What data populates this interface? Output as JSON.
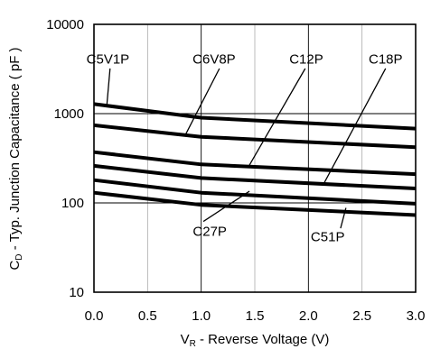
{
  "chart_data": {
    "type": "line",
    "xlabel": "VR - Reverse Voltage (V)",
    "xlabel_main": "V",
    "xlabel_sub": "R",
    "xlabel_rest": " - Reverse Voltage (V)",
    "ylabel": "CD - Typ. Junction Capacitance (pF)",
    "ylabel_main": "C",
    "ylabel_sub": "D",
    "ylabel_rest": " - Typ. Junction Capacitance ( pF )",
    "xlim": [
      0,
      3
    ],
    "ylim": [
      10,
      10000
    ],
    "yscale": "log",
    "grid": true,
    "x_ticks": [
      "0.0",
      "0.5",
      "1.0",
      "1.5",
      "2.0",
      "2.5",
      "3.0"
    ],
    "y_ticks": [
      "10",
      "100",
      "1000",
      "10000"
    ],
    "series": [
      {
        "name": "C5V1P",
        "x": [
          0,
          1,
          3
        ],
        "values": [
          1280,
          900,
          680
        ],
        "label_x": 0.13,
        "label_y": 4100
      },
      {
        "name": "C6V8P",
        "x": [
          0,
          1,
          3
        ],
        "values": [
          740,
          550,
          420
        ],
        "label_x": 1.12,
        "label_y": 4100
      },
      {
        "name": "C12P",
        "x": [
          0,
          1,
          3
        ],
        "values": [
          370,
          270,
          210
        ],
        "label_x": 1.98,
        "label_y": 4100
      },
      {
        "name": "C18P",
        "x": [
          0,
          1,
          3
        ],
        "values": [
          260,
          190,
          145
        ],
        "label_x": 2.72,
        "label_y": 4100
      },
      {
        "name": "C27P",
        "x": [
          0,
          1,
          3
        ],
        "values": [
          180,
          130,
          98
        ],
        "label_x": 1.08,
        "label_y": 48
      },
      {
        "name": "C51P",
        "x": [
          0,
          1,
          3
        ],
        "values": [
          130,
          95,
          73
        ],
        "label_x": 2.18,
        "label_y": 42
      }
    ],
    "leaders": [
      {
        "series": "C5V1P",
        "from": [
          0.15,
          3200
        ],
        "to": [
          0.12,
          1240
        ]
      },
      {
        "series": "C6V8P",
        "from": [
          1.17,
          3200
        ],
        "to": [
          0.85,
          570
        ]
      },
      {
        "series": "C12P",
        "from": [
          1.97,
          3200
        ],
        "to": [
          1.45,
          265
        ]
      },
      {
        "series": "C18P",
        "from": [
          2.72,
          3200
        ],
        "to": [
          2.15,
          170
        ]
      },
      {
        "series": "C27P",
        "from": [
          1.02,
          62
        ],
        "to": [
          1.45,
          135
        ]
      },
      {
        "series": "C51P",
        "from": [
          2.3,
          52
        ],
        "to": [
          2.35,
          88
        ]
      }
    ]
  }
}
